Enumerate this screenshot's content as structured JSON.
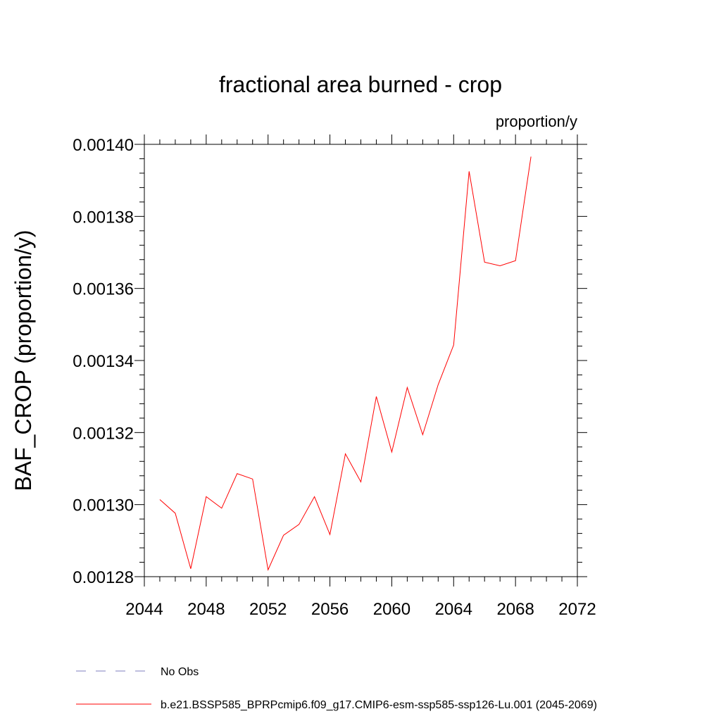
{
  "chart_data": {
    "type": "line",
    "title": "fractional area burned - crop",
    "units": "proportion/y",
    "ylabel": "BAF_CROP  (proportion/y)",
    "xlabel": "",
    "xlim": [
      2044,
      2072
    ],
    "ylim": [
      0.00128,
      0.0014
    ],
    "x_ticks": [
      2044,
      2048,
      2052,
      2056,
      2060,
      2064,
      2068,
      2072
    ],
    "x_tick_labels": [
      "2044",
      "2048",
      "2052",
      "2056",
      "2060",
      "2064",
      "2068",
      "2072"
    ],
    "y_ticks": [
      0.00128,
      0.0013,
      0.00132,
      0.00134,
      0.00136,
      0.00138,
      0.0014
    ],
    "y_tick_labels": [
      "0.00128",
      "0.00130",
      "0.00132",
      "0.00134",
      "0.00136",
      "0.00138",
      "0.00140"
    ],
    "grid": false,
    "legend_placement": "bottom",
    "series": [
      {
        "name": "b.e21.BSSP585_BPRPcmip6.f09_g17.CMIP6-esm-ssp585-ssp126-Lu.001 (2045-2069)",
        "color": "#ff0000",
        "dash": "solid",
        "x": [
          2045,
          2046,
          2047,
          2048,
          2049,
          2050,
          2051,
          2052,
          2053,
          2054,
          2055,
          2056,
          2057,
          2058,
          2059,
          2060,
          2061,
          2062,
          2063,
          2064,
          2065,
          2066,
          2067,
          2068,
          2069
        ],
        "values": [
          0.0013014,
          0.0012976,
          0.0012822,
          0.0013022,
          0.001299,
          0.0013086,
          0.0013071,
          0.0012819,
          0.0012915,
          0.0012945,
          0.0013022,
          0.0012917,
          0.0013141,
          0.0013063,
          0.00133,
          0.0013146,
          0.0013325,
          0.0013194,
          0.0013333,
          0.0013443,
          0.0013925,
          0.0013673,
          0.0013663,
          0.0013677,
          0.0013966
        ]
      }
    ],
    "legend": [
      {
        "label": "No Obs",
        "color": "#7f7fbf",
        "dash": "dashed"
      },
      {
        "label": "b.e21.BSSP585_BPRPcmip6.f09_g17.CMIP6-esm-ssp585-ssp126-Lu.001 (2045-2069)",
        "color": "#ff0000",
        "dash": "solid"
      }
    ]
  }
}
